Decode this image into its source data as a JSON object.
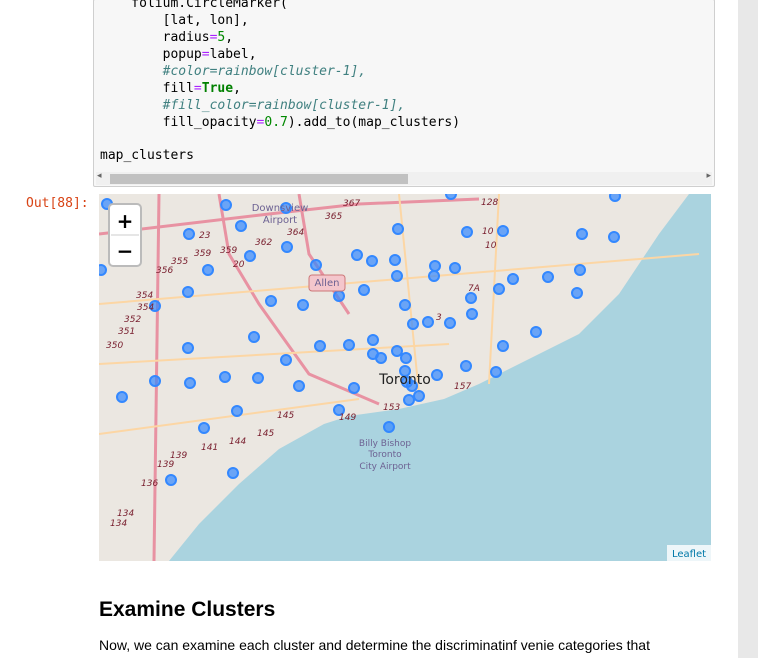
{
  "code": {
    "lines": [
      "    folium.CircleMarker(",
      "        [lat, lon],",
      "        radius=5,",
      "        popup=label,",
      "        #color=rainbow[cluster-1],",
      "        fill=True,",
      "        #fill_color=rainbow[cluster-1],",
      "        fill_opacity=0.7).add_to(map_clusters)"
    ],
    "result_line": "map_clusters"
  },
  "output": {
    "prompt": "Out[88]:",
    "zoom_in": "+",
    "zoom_out": "−",
    "map": {
      "places": [
        "Downsview",
        "Airport",
        "Allen",
        "Toronto",
        "Billy Bishop",
        "Toronto",
        "City Airport"
      ],
      "road_labels": [
        "367",
        "365",
        "128",
        "23",
        "362",
        "364",
        "359",
        "359",
        "355",
        "356",
        "20",
        "10",
        "10",
        "7A",
        "354",
        "354",
        "352",
        "351",
        "350",
        "3",
        "157",
        "153",
        "145",
        "145",
        "149",
        "144",
        "141",
        "139",
        "139",
        "136",
        "134",
        "134"
      ],
      "attribution": "Leaflet"
    }
  },
  "markdown": {
    "heading": "Examine Clusters",
    "paragraph": "Now, we can examine each cluster and determine the discriminatinf venie categories that"
  }
}
